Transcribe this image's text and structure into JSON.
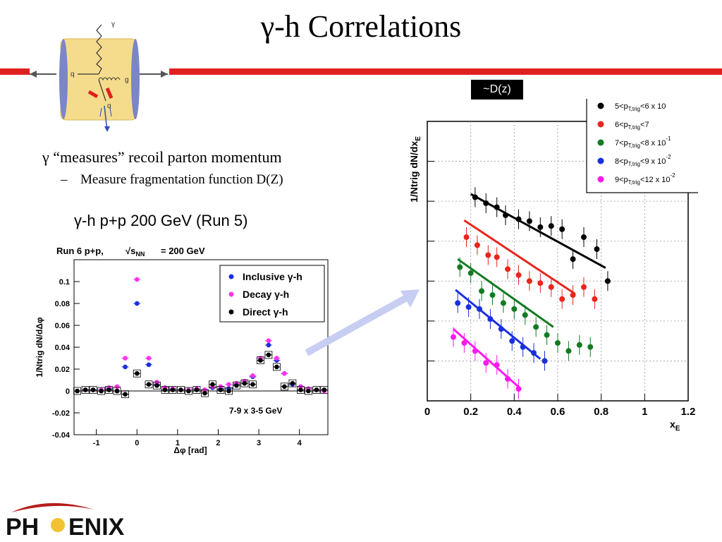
{
  "slide": {
    "title": "γ-h Correlations",
    "bullet_1": "γ “measures” recoil parton momentum",
    "bullet_1_marker": "",
    "bullet_2": "Measure fragmentation function D(Z)",
    "bullet_2_marker": "–",
    "subtitle": "γ-h  p+p 200 GeV (Run 5)",
    "callout_label": "~D(z)",
    "logo_text": "PHENIX"
  },
  "diagram": {
    "labels": [
      "γ",
      "q",
      "g",
      "q"
    ]
  },
  "colors": {
    "accent_red": "#e0201e",
    "detector_fill": "#f5dc8c",
    "detector_ends": "#7b86c7",
    "arrow": "#c8cdf2"
  },
  "chart_data": [
    {
      "type": "scatter",
      "header": "Run 6 p+p,",
      "header_sqrt": "s",
      "header_sub": "NN",
      "header_value": "= 200 GeV",
      "xlabel": "Δφ [rad]",
      "ylabel": "1/Ntrig dN/dΔφ",
      "xlim": [
        -1.55,
        4.7
      ],
      "ylim": [
        -0.04,
        0.12
      ],
      "xticks": [
        "-1",
        "0",
        "1",
        "2",
        "3",
        "4"
      ],
      "xtick_values": [
        -1,
        0,
        1,
        2,
        3,
        4
      ],
      "yticks": [
        "-0.04",
        "-0.02",
        "0",
        "0.02",
        "0.04",
        "0.06",
        "0.08",
        "0.1"
      ],
      "ytick_values": [
        -0.04,
        -0.02,
        0,
        0.02,
        0.04,
        0.06,
        0.08,
        0.1
      ],
      "annotation": "7-9 x 3-5 GeV",
      "legend_position": "top-right",
      "grid": false,
      "series": [
        {
          "name": "Inclusive γ-h",
          "color": "#1a2fdc",
          "x": [
            -1.47,
            -1.27,
            -1.08,
            -0.88,
            -0.69,
            -0.49,
            -0.29,
            0.0,
            0.29,
            0.49,
            0.69,
            0.88,
            1.08,
            1.27,
            1.47,
            1.67,
            1.86,
            2.06,
            2.26,
            2.45,
            2.65,
            2.85,
            3.04,
            3.24,
            3.44,
            3.63,
            3.83,
            4.03,
            4.22,
            4.42,
            4.61
          ],
          "y": [
            0.0,
            0.001,
            0.001,
            0.0,
            0.002,
            0.0,
            0.022,
            0.08,
            0.024,
            0.006,
            0.003,
            0.002,
            0.001,
            0.0,
            0.002,
            0.001,
            0.003,
            0.002,
            0.002,
            0.006,
            0.007,
            0.013,
            0.028,
            0.042,
            0.028,
            0.016,
            0.006,
            0.004,
            0.002,
            0.001,
            0.001
          ]
        },
        {
          "name": "Decay γ-h",
          "color": "#ff33ee",
          "x": [
            -1.47,
            -1.27,
            -1.08,
            -0.88,
            -0.69,
            -0.49,
            -0.29,
            0.0,
            0.29,
            0.49,
            0.69,
            0.88,
            1.08,
            1.27,
            1.47,
            1.67,
            1.86,
            2.06,
            2.26,
            2.45,
            2.65,
            2.85,
            3.04,
            3.24,
            3.44,
            3.63,
            3.83,
            4.03,
            4.22,
            4.42,
            4.61
          ],
          "y": [
            0.0,
            0.001,
            0.001,
            0.001,
            0.003,
            0.004,
            0.03,
            0.102,
            0.03,
            0.008,
            0.003,
            0.002,
            0.001,
            0.001,
            0.002,
            0.001,
            0.004,
            0.004,
            0.006,
            0.007,
            0.009,
            0.014,
            0.03,
            0.046,
            0.03,
            0.016,
            0.007,
            0.004,
            0.002,
            0.001,
            0.0
          ]
        },
        {
          "name": "Direct γ-h",
          "color": "#000000",
          "x": [
            -1.47,
            -1.27,
            -1.08,
            -0.88,
            -0.69,
            -0.49,
            -0.29,
            0.0,
            0.29,
            0.49,
            0.69,
            0.88,
            1.08,
            1.27,
            1.47,
            1.67,
            1.86,
            2.06,
            2.26,
            2.45,
            2.65,
            2.85,
            3.04,
            3.24,
            3.44,
            3.63,
            3.83,
            4.03,
            4.22,
            4.42,
            4.61
          ],
          "y": [
            0.0,
            0.001,
            0.001,
            0.0,
            0.001,
            0.0,
            -0.003,
            0.016,
            0.006,
            0.005,
            0.001,
            0.001,
            0.001,
            0.0,
            0.001,
            -0.002,
            0.006,
            0.001,
            0.0,
            0.005,
            0.007,
            0.006,
            0.028,
            0.033,
            0.022,
            0.004,
            0.007,
            0.001,
            0.0,
            0.001,
            0.001
          ]
        }
      ]
    },
    {
      "type": "scatter",
      "xlabel": "x",
      "xlabel_sub": "E",
      "ylabel": "1/Ntrig dN/dx",
      "ylabel_sub": "E",
      "xlim": [
        0,
        1.2
      ],
      "xticks": [
        "0",
        "0.2",
        "0.4",
        "0.6",
        "0.8",
        "1",
        "1.2"
      ],
      "xtick_values": [
        0,
        0.2,
        0.4,
        0.6,
        0.8,
        1.0,
        1.2
      ],
      "y_log_scale": true,
      "y_decades": 7,
      "grid": true,
      "legend_position": "top-right",
      "series": [
        {
          "name": "5<p",
          "name_sub": "T,trig",
          "name_rest": "<6 x 10",
          "name_sup": "",
          "color": "#000000",
          "x": [
            0.22,
            0.27,
            0.32,
            0.36,
            0.42,
            0.47,
            0.52,
            0.57,
            0.62,
            0.67,
            0.72,
            0.78,
            0.83
          ],
          "y_decade": [
            5.1,
            4.95,
            4.85,
            4.65,
            4.55,
            4.5,
            4.35,
            4.38,
            4.3,
            3.55,
            4.1,
            3.8,
            3.0
          ],
          "fit_x": [
            0.2,
            0.82
          ],
          "fit_decade": [
            5.18,
            3.33
          ]
        },
        {
          "name": "6<p",
          "name_sub": "T,trig",
          "name_rest": "<7",
          "name_sup": "",
          "color": "#e8261e",
          "x": [
            0.18,
            0.23,
            0.28,
            0.32,
            0.37,
            0.42,
            0.47,
            0.52,
            0.57,
            0.62,
            0.67,
            0.72,
            0.77
          ],
          "y_decade": [
            4.1,
            3.9,
            3.65,
            3.6,
            3.3,
            3.15,
            3.0,
            2.95,
            2.85,
            2.55,
            2.65,
            2.85,
            2.55
          ],
          "fit_x": [
            0.17,
            0.68
          ],
          "fit_decade": [
            4.52,
            2.68
          ]
        },
        {
          "name": "7<p",
          "name_sub": "T,trig",
          "name_rest": "<8 x 10",
          "name_sup": "-1",
          "color": "#137a22",
          "x": [
            0.15,
            0.2,
            0.25,
            0.3,
            0.35,
            0.4,
            0.45,
            0.5,
            0.55,
            0.6,
            0.65,
            0.7,
            0.75
          ],
          "y_decade": [
            3.35,
            3.2,
            2.75,
            2.65,
            2.45,
            2.3,
            2.15,
            1.85,
            1.65,
            1.45,
            1.25,
            1.4,
            1.35
          ],
          "fit_x": [
            0.14,
            0.58
          ],
          "fit_decade": [
            3.55,
            1.85
          ]
        },
        {
          "name": "8<p",
          "name_sub": "T,trig",
          "name_rest": "<9 x 10",
          "name_sup": "-2",
          "color": "#1a2fdc",
          "x": [
            0.14,
            0.19,
            0.24,
            0.29,
            0.34,
            0.39,
            0.44,
            0.49,
            0.54
          ],
          "y_decade": [
            2.45,
            2.35,
            2.3,
            2.05,
            1.8,
            1.5,
            1.35,
            1.2,
            1.0
          ],
          "fit_x": [
            0.13,
            0.52
          ],
          "fit_decade": [
            2.78,
            1.05
          ]
        },
        {
          "name": "9<p",
          "name_sub": "T,trig",
          "name_rest": "<12 x 10",
          "name_sup": "-2",
          "color": "#ff19ee",
          "x": [
            0.12,
            0.17,
            0.22,
            0.27,
            0.32,
            0.37,
            0.42
          ],
          "y_decade": [
            1.6,
            1.45,
            1.25,
            0.95,
            0.9,
            0.55,
            0.3
          ],
          "fit_x": [
            0.12,
            0.43
          ],
          "fit_decade": [
            1.8,
            0.3
          ]
        }
      ]
    }
  ]
}
